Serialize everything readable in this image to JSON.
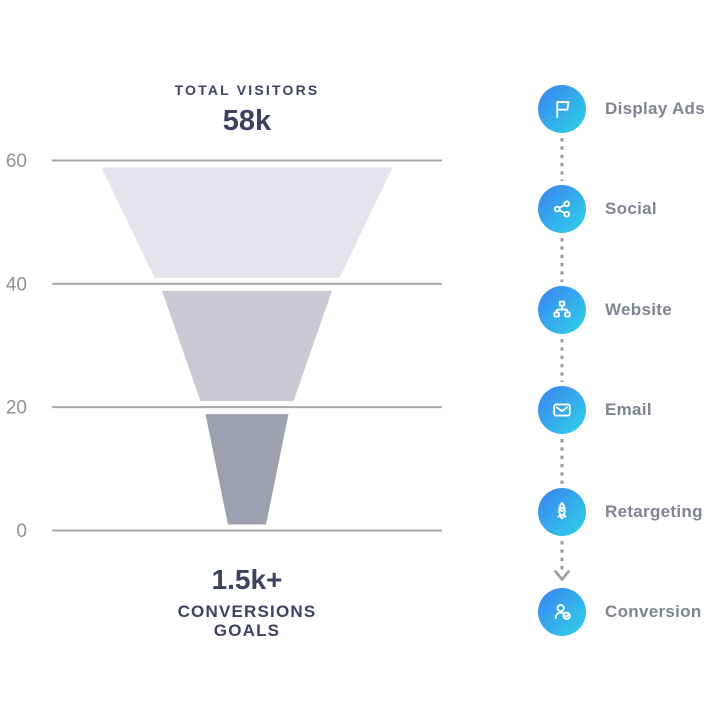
{
  "header": {
    "total_visitors_label": "TOTAL VISITORS",
    "total_visitors_value": "58k"
  },
  "footer": {
    "conversions_value": "1.5k+",
    "conversions_label_line1": "CONVERSIONS",
    "conversions_label_line2": "GOALS"
  },
  "channels": [
    {
      "icon": "flag-icon",
      "label": "Display Ads"
    },
    {
      "icon": "share-icon",
      "label": "Social"
    },
    {
      "icon": "sitemap-icon",
      "label": "Website"
    },
    {
      "icon": "envelope-icon",
      "label": "Email"
    },
    {
      "icon": "rocket-icon",
      "label": "Retargeting"
    },
    {
      "icon": "person-check-icon",
      "label": "Conversion"
    }
  ],
  "colors": {
    "title_navy": "#3d4261",
    "axis_tick": "#909094",
    "gridline": "#a8a8ac",
    "channel_label": "#7f8490",
    "connector": "#9a9aa0",
    "icon_gradient_start": "#3b82f1",
    "icon_gradient_end": "#2ed3e6"
  },
  "chart_data": {
    "type": "funnel",
    "title": "TOTAL VISITORS",
    "total_visitors": "58k",
    "conversions_goals": "1.5k+",
    "y_ticks": [
      "60",
      "40",
      "20",
      "0"
    ],
    "y_range": [
      0,
      60
    ],
    "grid": true,
    "legend_position": "right",
    "stages": [
      {
        "level_top": 60,
        "level_bottom": 40,
        "width_pct_top": 100.0,
        "width_pct_bottom": 63.6,
        "color": "#e5e4ec"
      },
      {
        "level_top": 40,
        "level_bottom": 20,
        "width_pct_top": 58.4,
        "width_pct_bottom": 32.0,
        "color": "#c9c9d4"
      },
      {
        "level_top": 20,
        "level_bottom": 0,
        "width_pct_top": 28.5,
        "width_pct_bottom": 13.1,
        "color": "#9fa0af"
      }
    ],
    "channel_sequence": [
      "Display Ads",
      "Social",
      "Website",
      "Email",
      "Retargeting",
      "Conversion"
    ]
  }
}
